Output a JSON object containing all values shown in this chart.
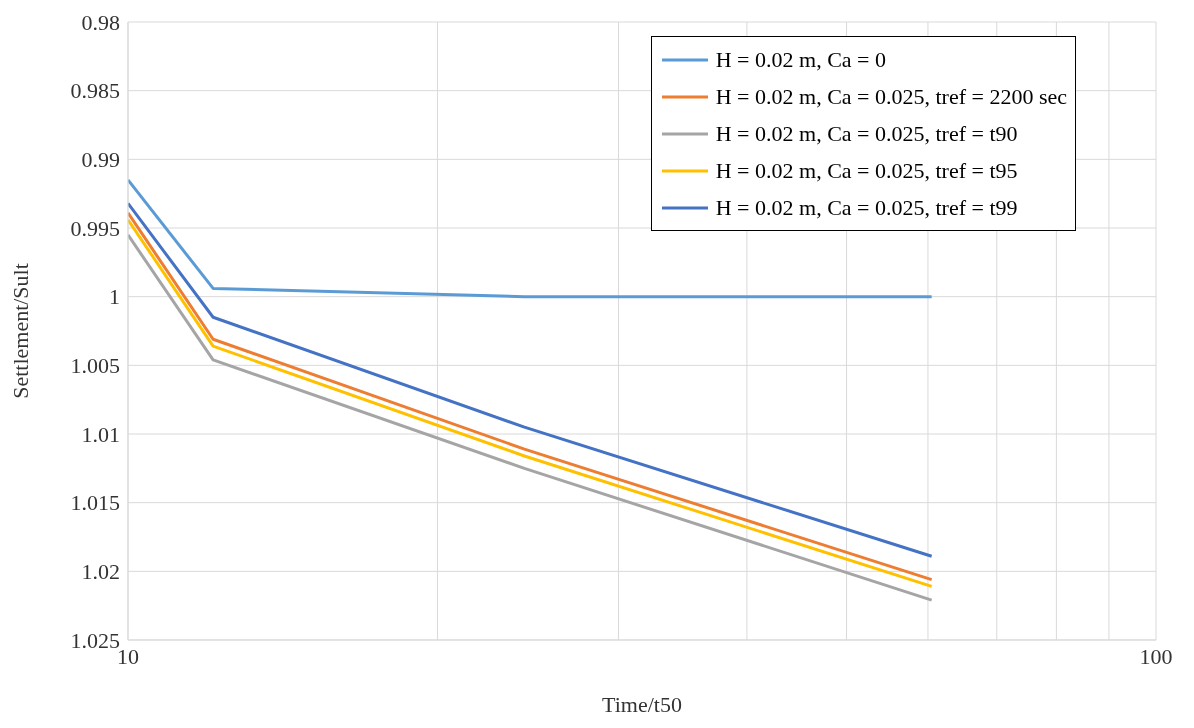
{
  "chart_data": {
    "type": "line",
    "xlabel": "Time/t50",
    "ylabel": "Settlement/Sult",
    "log": "x",
    "xlim": [
      10,
      100
    ],
    "xticks": [
      10,
      {
        "value": 20,
        "label": null
      },
      {
        "value": 30,
        "label": null
      },
      {
        "value": 40,
        "label": null
      },
      {
        "value": 50,
        "label": null
      },
      {
        "value": 60,
        "label": null
      },
      {
        "value": 70,
        "label": null
      },
      {
        "value": 80,
        "label": null
      },
      {
        "value": 90,
        "label": null
      },
      100
    ],
    "ylim": [
      1.025,
      0.98
    ],
    "yticks": [
      0.98,
      0.985,
      0.99,
      0.995,
      1,
      1.005,
      1.01,
      1.015,
      1.02,
      1.025
    ],
    "grid": true,
    "legend": "top right",
    "marker": "none",
    "line_style": "solid",
    "x": [
      10,
      12.1,
      24.3,
      60.5
    ],
    "series": [
      {
        "name": "H = 0.02 m, Ca = 0",
        "color": "#5b9bd5",
        "values": [
          0.9915,
          0.9994,
          1.0,
          1.0
        ]
      },
      {
        "name": "H = 0.02 m, Ca = 0.025, tref = 2200 sec",
        "color": "#ed7d31",
        "values": [
          0.9939,
          1.0031,
          1.0111,
          1.0206
        ]
      },
      {
        "name": "H = 0.02 m, Ca = 0.025, tref = t90",
        "color": "#a5a5a5",
        "values": [
          0.9955,
          1.0046,
          1.0125,
          1.0221
        ]
      },
      {
        "name": "H = 0.02 m, Ca = 0.025, tref = t95",
        "color": "#ffc000",
        "values": [
          0.9944,
          1.0036,
          1.0116,
          1.0211
        ]
      },
      {
        "name": "H = 0.02 m, Ca = 0.025, tref = t99",
        "color": "#4472c4",
        "values": [
          0.9932,
          1.0015,
          1.0095,
          1.0189
        ]
      }
    ]
  }
}
